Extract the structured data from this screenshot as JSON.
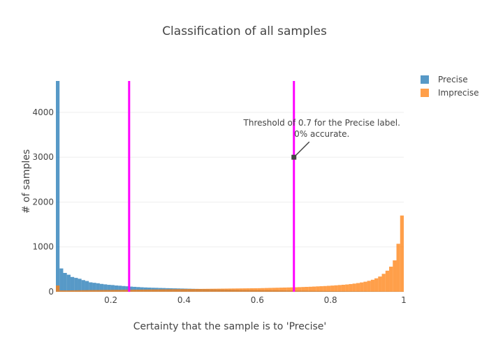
{
  "chart_data": {
    "type": "bar",
    "title": "Classification of all samples",
    "xlabel": "Certainty that the sample is to 'Precise'",
    "ylabel": "# of samples",
    "xlim": [
      0.05,
      1.0
    ],
    "ylim": [
      0,
      4700
    ],
    "xticks": [
      0.2,
      0.4,
      0.6,
      0.8,
      1
    ],
    "xtick_labels": [
      "0.2",
      "0.4",
      "0.6",
      "0.8",
      "1"
    ],
    "yticks": [
      0,
      1000,
      2000,
      3000,
      4000
    ],
    "ytick_labels": [
      "0",
      "1000",
      "2000",
      "3000",
      "4000"
    ],
    "grid": true,
    "legend_position": "top-right",
    "bin_width": 0.01,
    "bin_starts": [
      0.05,
      0.06,
      0.07,
      0.08,
      0.09,
      0.1,
      0.11,
      0.12,
      0.13,
      0.14,
      0.15,
      0.16,
      0.17,
      0.18,
      0.19,
      0.2,
      0.21,
      0.22,
      0.23,
      0.24,
      0.25,
      0.26,
      0.27,
      0.28,
      0.29,
      0.3,
      0.31,
      0.32,
      0.33,
      0.34,
      0.35,
      0.36,
      0.37,
      0.38,
      0.39,
      0.4,
      0.41,
      0.42,
      0.43,
      0.44,
      0.45,
      0.46,
      0.47,
      0.48,
      0.49,
      0.5,
      0.51,
      0.52,
      0.53,
      0.54,
      0.55,
      0.56,
      0.57,
      0.58,
      0.59,
      0.6,
      0.61,
      0.62,
      0.63,
      0.64,
      0.65,
      0.66,
      0.67,
      0.68,
      0.69,
      0.7,
      0.71,
      0.72,
      0.73,
      0.74,
      0.75,
      0.76,
      0.77,
      0.78,
      0.79,
      0.8,
      0.81,
      0.82,
      0.83,
      0.84,
      0.85,
      0.86,
      0.87,
      0.88,
      0.89,
      0.9,
      0.91,
      0.92,
      0.93,
      0.94,
      0.95,
      0.96,
      0.97,
      0.98,
      0.99
    ],
    "series": [
      {
        "name": "Precise",
        "color": "#1f77b4",
        "values": [
          4700,
          520,
          420,
          380,
          330,
          310,
          290,
          260,
          240,
          210,
          200,
          190,
          175,
          165,
          155,
          150,
          140,
          135,
          128,
          122,
          115,
          110,
          105,
          100,
          96,
          93,
          90,
          88,
          85,
          83,
          80,
          78,
          76,
          74,
          72,
          70,
          68,
          66,
          64,
          62,
          60,
          58,
          56,
          54,
          52,
          50,
          48,
          46,
          44,
          42,
          40,
          39,
          38,
          37,
          36,
          35,
          34,
          33,
          32,
          31,
          30,
          29,
          28,
          27,
          26,
          25,
          24,
          23,
          22,
          21,
          20,
          19,
          18,
          17,
          16,
          15,
          15,
          14,
          14,
          13,
          13,
          12,
          12,
          11,
          11,
          10,
          10,
          9,
          9,
          8,
          8,
          7,
          7,
          6,
          6
        ]
      },
      {
        "name": "Imprecise",
        "color": "#ff7f0e",
        "values": [
          140,
          30,
          30,
          30,
          32,
          33,
          34,
          35,
          36,
          37,
          38,
          38,
          39,
          40,
          40,
          41,
          42,
          42,
          43,
          44,
          45,
          46,
          47,
          48,
          49,
          50,
          51,
          52,
          53,
          54,
          55,
          56,
          57,
          58,
          59,
          60,
          61,
          62,
          63,
          64,
          65,
          66,
          67,
          68,
          69,
          70,
          71,
          72,
          73,
          74,
          75,
          76,
          77,
          78,
          79,
          80,
          82,
          84,
          86,
          88,
          90,
          92,
          94,
          96,
          98,
          100,
          103,
          106,
          109,
          112,
          116,
          120,
          124,
          128,
          133,
          138,
          144,
          150,
          156,
          163,
          172,
          182,
          194,
          208,
          224,
          244,
          268,
          300,
          340,
          400,
          470,
          560,
          700,
          1070,
          1700
        ]
      }
    ],
    "threshold_lines": [
      0.25,
      0.7
    ],
    "threshold_color": "#ff00ff",
    "annotation": {
      "lines": [
        "Threshold of 0.7 for the Precise label.",
        "0% accurate."
      ],
      "x": 0.7,
      "y": 3000
    }
  }
}
